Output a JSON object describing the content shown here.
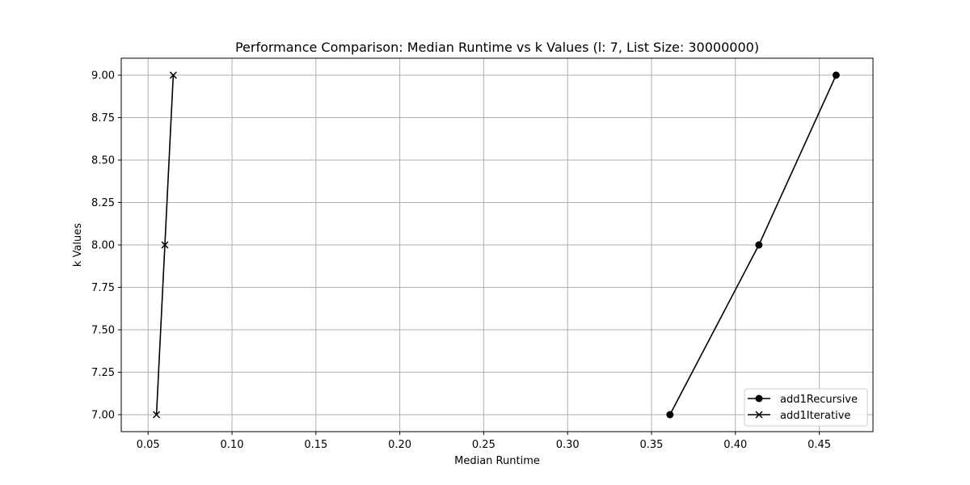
{
  "chart_data": {
    "type": "line",
    "title": "Performance Comparison: Median Runtime vs k Values (l: 7, List Size: 30000000)",
    "xlabel": "Median Runtime",
    "ylabel": "k Values",
    "xlim": [
      0.034,
      0.482
    ],
    "ylim": [
      6.9,
      9.1
    ],
    "xticks": [
      0.05,
      0.1,
      0.15,
      0.2,
      0.25,
      0.3,
      0.35,
      0.4,
      0.45
    ],
    "xtick_labels": [
      "0.05",
      "0.10",
      "0.15",
      "0.20",
      "0.25",
      "0.30",
      "0.35",
      "0.40",
      "0.45"
    ],
    "yticks": [
      7.0,
      7.25,
      7.5,
      7.75,
      8.0,
      8.25,
      8.5,
      8.75,
      9.0
    ],
    "ytick_labels": [
      "7.00",
      "7.25",
      "7.50",
      "7.75",
      "8.00",
      "8.25",
      "8.50",
      "8.75",
      "9.00"
    ],
    "grid": true,
    "legend_position": "bottom-right",
    "series": [
      {
        "name": "add1Recursive",
        "marker": "circle",
        "color": "#000000",
        "x": [
          0.361,
          0.414,
          0.46
        ],
        "y": [
          7,
          8,
          9
        ]
      },
      {
        "name": "add1Iterative",
        "marker": "x",
        "color": "#000000",
        "x": [
          0.055,
          0.06,
          0.065
        ],
        "y": [
          7,
          8,
          9
        ]
      }
    ]
  }
}
